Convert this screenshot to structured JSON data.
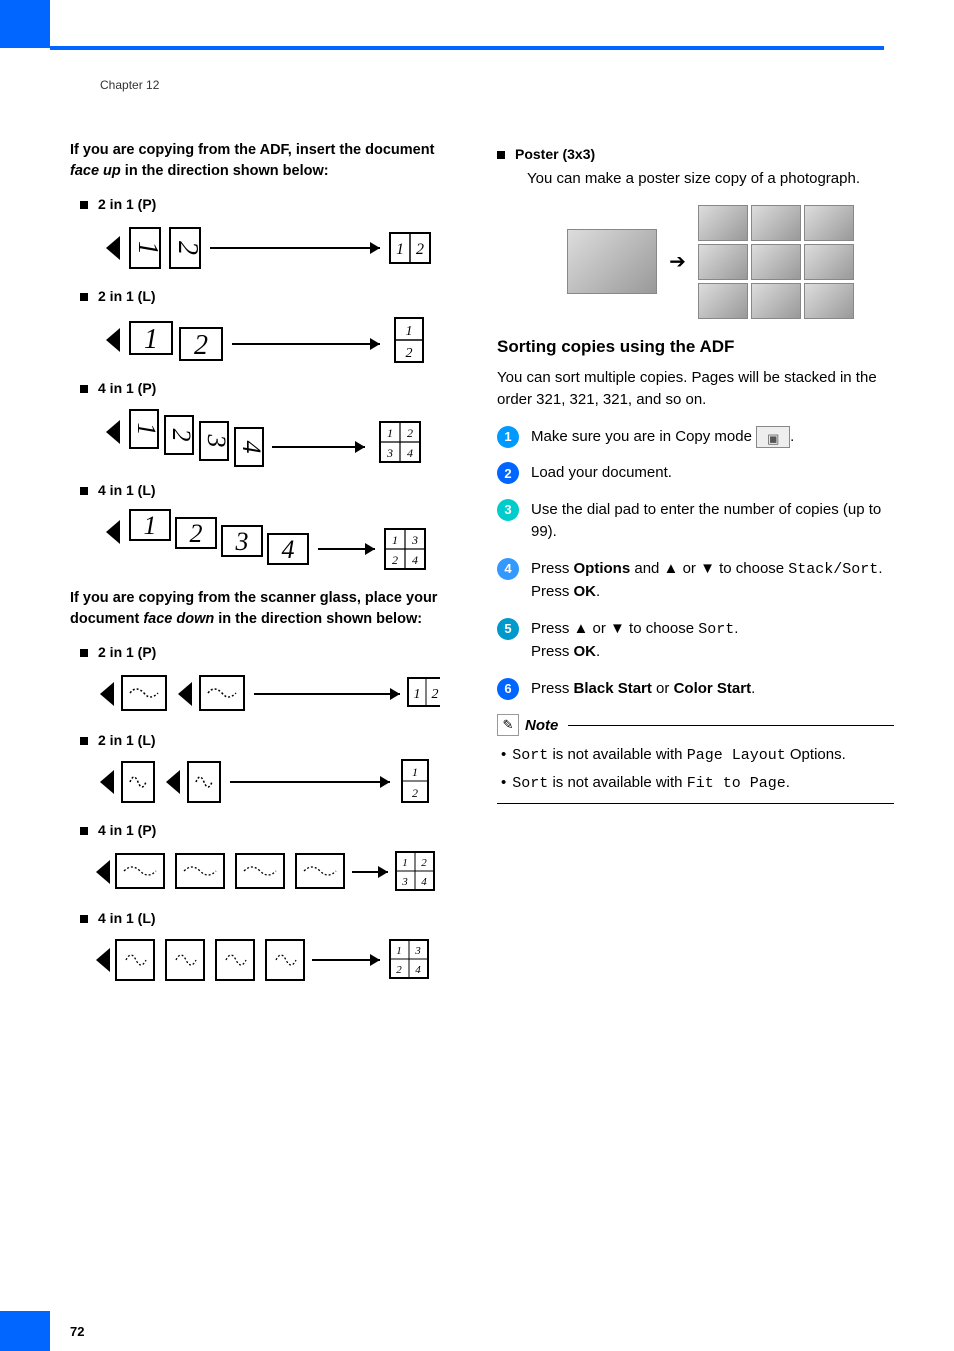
{
  "chapter": "Chapter 12",
  "page_number": "72",
  "left_column": {
    "intro_adf_1": "If you are copying from the ADF, insert the document ",
    "intro_adf_em": "face up",
    "intro_adf_2": " in the direction shown below:",
    "items_adf": [
      "2 in 1 (P)",
      "2 in 1 (L)",
      "4 in 1 (P)",
      "4 in 1 (L)"
    ],
    "intro_glass_1": "If you are copying from the scanner glass, place your document ",
    "intro_glass_em": "face down",
    "intro_glass_2": " in the direction shown below:",
    "items_glass": [
      "2 in 1 (P)",
      "2 in 1 (L)",
      "4 in 1 (P)",
      "4 in 1 (L)"
    ]
  },
  "right_column": {
    "poster_label": "Poster (3x3)",
    "poster_text": "You can make a poster size copy of a photograph.",
    "sorting_heading": "Sorting copies using the ADF",
    "sorting_intro": "You can sort multiple copies. Pages will be stacked in the order 321, 321, 321, and so on.",
    "steps": [
      {
        "num": "1",
        "color": "#0099ff",
        "body_pre": "Make sure you are in Copy mode ",
        "body_post": "."
      },
      {
        "num": "2",
        "color": "#0066ff",
        "body": "Load your document."
      },
      {
        "num": "3",
        "color": "#00cccc",
        "body": "Use the dial pad to enter the number of copies (up to 99)."
      },
      {
        "num": "4",
        "color": "#3399ff",
        "body_html": "Press <b>Options</b> and ▲ or ▼ to choose <span class='mono'>Stack/Sort</span>.<br>Press <b>OK</b>."
      },
      {
        "num": "5",
        "color": "#0099cc",
        "body_html": "Press ▲ or ▼ to choose <span class='mono'>Sort</span>.<br>Press <b>OK</b>."
      },
      {
        "num": "6",
        "color": "#0066ff",
        "body_html": "Press <b>Black Start</b> or <b>Color Start</b>."
      }
    ],
    "note_label": "Note",
    "note_items": [
      {
        "pre": "",
        "mono1": "Sort",
        "mid": " is not available with ",
        "mono2": "Page Layout",
        "post": " Options."
      },
      {
        "pre": "",
        "mono1": "Sort",
        "mid": " is not available with ",
        "mono2": "Fit to Page",
        "post": "."
      }
    ]
  },
  "diagram_style": {
    "stroke": "#000000",
    "fill_box": "#ffffff",
    "font": "italic 22px serif",
    "font_small": "italic 12px serif"
  }
}
